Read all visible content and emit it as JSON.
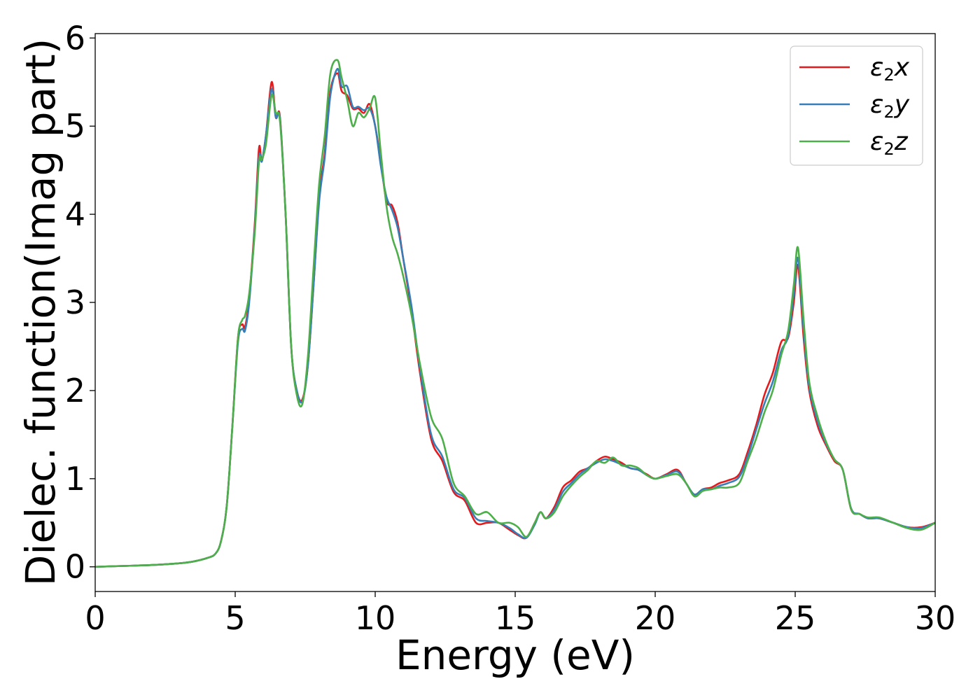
{
  "chart_data": {
    "type": "line",
    "xlabel": "Energy (eV)",
    "ylabel": "Dielec. function(Imag part)",
    "xlim": [
      0,
      30
    ],
    "ylim": [
      -0.28,
      6.05
    ],
    "xticks": [
      0,
      5,
      10,
      15,
      20,
      25,
      30
    ],
    "yticks": [
      0,
      1,
      2,
      3,
      4,
      5,
      6
    ],
    "grid": false,
    "legend_position": "top-right",
    "legend_entries": [
      {
        "symbol": "ε",
        "sub": "2",
        "var": "x",
        "color": "#e41a1c"
      },
      {
        "symbol": "ε",
        "sub": "2",
        "var": "y",
        "color": "#377eb8"
      },
      {
        "symbol": "ε",
        "sub": "2",
        "var": "z",
        "color": "#4daf4a"
      }
    ],
    "series": [
      {
        "color": "#e41a1c",
        "x": [
          0,
          1,
          2,
          3,
          3.5,
          4,
          4.3,
          4.5,
          4.7,
          4.9,
          5.1,
          5.25,
          5.35,
          5.5,
          5.7,
          5.85,
          5.95,
          6.1,
          6.3,
          6.45,
          6.6,
          6.8,
          7.0,
          7.2,
          7.4,
          7.6,
          7.8,
          8.0,
          8.2,
          8.4,
          8.65,
          8.8,
          9.0,
          9.2,
          9.4,
          9.6,
          9.8,
          10.0,
          10.2,
          10.4,
          10.6,
          10.8,
          11.0,
          11.3,
          11.6,
          12.0,
          12.4,
          12.8,
          13.2,
          13.6,
          14.0,
          14.4,
          14.8,
          15.1,
          15.4,
          15.7,
          15.9,
          16.1,
          16.4,
          16.7,
          17.0,
          17.3,
          17.6,
          17.9,
          18.2,
          18.5,
          18.8,
          19.1,
          19.4,
          19.7,
          20.0,
          20.4,
          20.8,
          21.1,
          21.4,
          21.7,
          22.0,
          22.3,
          22.6,
          23.0,
          23.3,
          23.6,
          23.9,
          24.2,
          24.5,
          24.75,
          24.95,
          25.1,
          25.3,
          25.5,
          25.8,
          26.1,
          26.4,
          26.7,
          27.0,
          27.3,
          27.6,
          28.0,
          28.5,
          29.0,
          29.5,
          30.0
        ],
        "values": [
          0,
          0.01,
          0.02,
          0.04,
          0.06,
          0.1,
          0.15,
          0.3,
          0.7,
          1.6,
          2.6,
          2.75,
          2.72,
          3.05,
          3.9,
          4.75,
          4.6,
          4.9,
          5.5,
          5.1,
          5.1,
          4.0,
          2.5,
          2.0,
          1.9,
          2.3,
          3.2,
          4.2,
          4.7,
          5.4,
          5.6,
          5.4,
          5.35,
          5.2,
          5.2,
          5.15,
          5.25,
          5.0,
          4.6,
          4.15,
          4.1,
          3.9,
          3.5,
          2.9,
          2.2,
          1.45,
          1.2,
          0.85,
          0.75,
          0.5,
          0.5,
          0.5,
          0.42,
          0.36,
          0.33,
          0.5,
          0.62,
          0.55,
          0.68,
          0.9,
          0.98,
          1.08,
          1.12,
          1.2,
          1.25,
          1.22,
          1.18,
          1.12,
          1.1,
          1.05,
          1.0,
          1.05,
          1.1,
          0.95,
          0.82,
          0.88,
          0.9,
          0.95,
          0.98,
          1.05,
          1.3,
          1.6,
          1.95,
          2.2,
          2.55,
          2.6,
          3.0,
          3.42,
          2.6,
          2.0,
          1.6,
          1.38,
          1.2,
          1.1,
          0.65,
          0.6,
          0.55,
          0.55,
          0.5,
          0.45,
          0.45,
          0.5
        ]
      },
      {
        "color": "#377eb8",
        "x": [
          0,
          1,
          2,
          3,
          3.5,
          4,
          4.3,
          4.5,
          4.7,
          4.9,
          5.1,
          5.25,
          5.35,
          5.5,
          5.7,
          5.85,
          5.95,
          6.1,
          6.3,
          6.45,
          6.6,
          6.8,
          7.0,
          7.2,
          7.4,
          7.6,
          7.8,
          8.0,
          8.2,
          8.4,
          8.65,
          8.8,
          9.0,
          9.2,
          9.4,
          9.6,
          9.8,
          10.0,
          10.2,
          10.4,
          10.6,
          10.8,
          11.0,
          11.3,
          11.6,
          12.0,
          12.4,
          12.8,
          13.2,
          13.6,
          14.0,
          14.4,
          14.8,
          15.1,
          15.4,
          15.7,
          15.9,
          16.1,
          16.4,
          16.7,
          17.0,
          17.3,
          17.6,
          17.9,
          18.2,
          18.5,
          18.8,
          19.1,
          19.4,
          19.7,
          20.0,
          20.4,
          20.8,
          21.1,
          21.4,
          21.7,
          22.0,
          22.3,
          22.6,
          23.0,
          23.3,
          23.6,
          23.9,
          24.2,
          24.5,
          24.75,
          24.95,
          25.1,
          25.3,
          25.5,
          25.8,
          26.1,
          26.4,
          26.7,
          27.0,
          27.3,
          27.6,
          28.0,
          28.5,
          29.0,
          29.5,
          30.0
        ],
        "values": [
          0,
          0.01,
          0.02,
          0.04,
          0.06,
          0.1,
          0.15,
          0.3,
          0.7,
          1.6,
          2.55,
          2.7,
          2.68,
          3.0,
          3.85,
          4.65,
          4.6,
          4.9,
          5.42,
          5.1,
          5.08,
          4.0,
          2.5,
          2.0,
          1.88,
          2.3,
          3.2,
          4.15,
          4.65,
          5.35,
          5.65,
          5.45,
          5.45,
          5.22,
          5.22,
          5.18,
          5.2,
          5.0,
          4.55,
          4.2,
          4.05,
          3.85,
          3.5,
          2.95,
          2.25,
          1.5,
          1.25,
          0.88,
          0.78,
          0.55,
          0.52,
          0.5,
          0.44,
          0.37,
          0.33,
          0.48,
          0.62,
          0.55,
          0.65,
          0.85,
          0.95,
          1.05,
          1.12,
          1.18,
          1.22,
          1.2,
          1.16,
          1.12,
          1.1,
          1.04,
          1.0,
          1.04,
          1.08,
          0.95,
          0.82,
          0.88,
          0.88,
          0.92,
          0.95,
          1.02,
          1.25,
          1.55,
          1.85,
          2.1,
          2.45,
          2.62,
          3.1,
          3.5,
          2.7,
          2.05,
          1.65,
          1.4,
          1.22,
          1.1,
          0.66,
          0.6,
          0.55,
          0.55,
          0.5,
          0.45,
          0.44,
          0.5
        ]
      },
      {
        "color": "#4daf4a",
        "x": [
          0,
          1,
          2,
          3,
          3.5,
          4,
          4.3,
          4.5,
          4.7,
          4.9,
          5.1,
          5.25,
          5.35,
          5.5,
          5.7,
          5.85,
          5.95,
          6.1,
          6.3,
          6.45,
          6.6,
          6.8,
          7.0,
          7.2,
          7.4,
          7.6,
          7.8,
          8.0,
          8.2,
          8.4,
          8.65,
          8.8,
          9.0,
          9.2,
          9.4,
          9.6,
          9.8,
          10.0,
          10.2,
          10.4,
          10.6,
          10.8,
          11.0,
          11.3,
          11.6,
          12.0,
          12.4,
          12.8,
          13.2,
          13.6,
          14.0,
          14.4,
          14.8,
          15.1,
          15.4,
          15.7,
          15.9,
          16.1,
          16.4,
          16.7,
          17.0,
          17.3,
          17.6,
          17.9,
          18.2,
          18.5,
          18.8,
          19.1,
          19.4,
          19.7,
          20.0,
          20.4,
          20.8,
          21.1,
          21.4,
          21.7,
          22.0,
          22.3,
          22.6,
          23.0,
          23.3,
          23.6,
          23.9,
          24.2,
          24.5,
          24.75,
          24.95,
          25.1,
          25.3,
          25.5,
          25.8,
          26.1,
          26.4,
          26.7,
          27.0,
          27.3,
          27.6,
          28.0,
          28.5,
          29.0,
          29.5,
          30.0
        ],
        "values": [
          0,
          0.01,
          0.02,
          0.04,
          0.06,
          0.1,
          0.15,
          0.3,
          0.7,
          1.6,
          2.6,
          2.8,
          2.85,
          3.1,
          3.8,
          4.6,
          4.62,
          4.8,
          5.35,
          5.15,
          5.05,
          4.0,
          2.5,
          1.95,
          1.85,
          2.4,
          3.4,
          4.35,
          4.9,
          5.6,
          5.75,
          5.55,
          5.3,
          5.0,
          5.15,
          5.1,
          5.2,
          5.32,
          4.7,
          4.1,
          3.75,
          3.55,
          3.3,
          2.85,
          2.3,
          1.7,
          1.45,
          0.95,
          0.8,
          0.6,
          0.62,
          0.5,
          0.5,
          0.45,
          0.34,
          0.5,
          0.62,
          0.55,
          0.62,
          0.8,
          0.92,
          1.02,
          1.1,
          1.2,
          1.18,
          1.24,
          1.15,
          1.15,
          1.12,
          1.04,
          1.0,
          1.03,
          1.05,
          0.95,
          0.8,
          0.86,
          0.88,
          0.9,
          0.9,
          0.95,
          1.2,
          1.45,
          1.75,
          2.0,
          2.4,
          2.68,
          3.2,
          3.62,
          2.8,
          2.1,
          1.7,
          1.42,
          1.22,
          1.1,
          0.65,
          0.6,
          0.56,
          0.56,
          0.5,
          0.44,
          0.42,
          0.5
        ]
      }
    ]
  }
}
